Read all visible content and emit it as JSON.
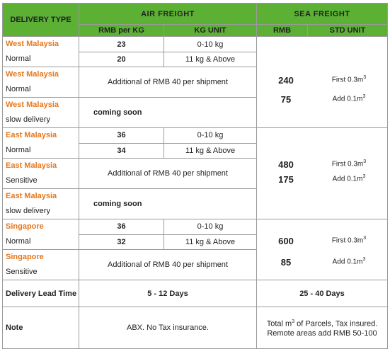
{
  "header": {
    "delivery_type": "DELIVERY TYPE",
    "air": "AIR FREIGHT",
    "sea": "SEA FREIGHT",
    "rmb_per_kg": "RMB per KG",
    "kg_unit": "KG UNIT",
    "rmb": "RMB",
    "std_unit": "STD UNIT"
  },
  "west": {
    "normal": {
      "region": "West Malaysia",
      "type": "Normal",
      "rate1": "23",
      "unit1": "0-10 kg",
      "rate2": "20",
      "unit2": "11 kg & Above"
    },
    "normal2": {
      "region": "West Malaysia",
      "type": "Normal",
      "note": "Additional of RMB 40 per shipment"
    },
    "slow": {
      "region": "West Malaysia",
      "type": "slow delivery",
      "note": "coming soon"
    },
    "sea": {
      "v1": "240",
      "u1": "First 0.3m",
      "v2": "75",
      "u2": "Add 0.1m",
      "sup": "3"
    }
  },
  "east": {
    "normal": {
      "region": "East Malaysia",
      "type": "Normal",
      "rate1": "36",
      "unit1": "0-10 kg",
      "rate2": "34",
      "unit2": "11 kg & Above"
    },
    "sensitive": {
      "region": "East Malaysia",
      "type": "Sensitive",
      "note": "Additional of RMB 40 per shipment"
    },
    "slow": {
      "region": "East Malaysia",
      "type": "slow delivery",
      "note": "coming soon"
    },
    "sea": {
      "v1": "480",
      "u1": "First 0.3m",
      "v2": "175",
      "u2": "Add 0.1m",
      "sup": "3"
    }
  },
  "singapore": {
    "normal": {
      "region": "Singapore",
      "type": "Normal",
      "rate1": "36",
      "unit1": "0-10 kg",
      "rate2": "32",
      "unit2": "11 kg & Above"
    },
    "sensitive": {
      "region": "Singapore",
      "type": "Sensitive",
      "note": "Additional of RMB 40 per shipment"
    },
    "sea": {
      "v1": "600",
      "u1": "First 0.3m",
      "v2": "85",
      "u2": "Add 0.1m",
      "sup": "3"
    }
  },
  "lead_time": {
    "label": "Delivery Lead Time",
    "air": "5 - 12 Days",
    "sea": "25 - 40 Days"
  },
  "note": {
    "label": "Note",
    "air": "ABX. No Tax insurance.",
    "sea_pre": "Total m",
    "sea_sup": "3",
    "sea_post": " of Parcels, Tax insured. Remote areas add RMB 50-100"
  },
  "colors": {
    "header_green": "#5cb135",
    "region_orange": "#e6771c",
    "border": "#9a9a9a"
  }
}
